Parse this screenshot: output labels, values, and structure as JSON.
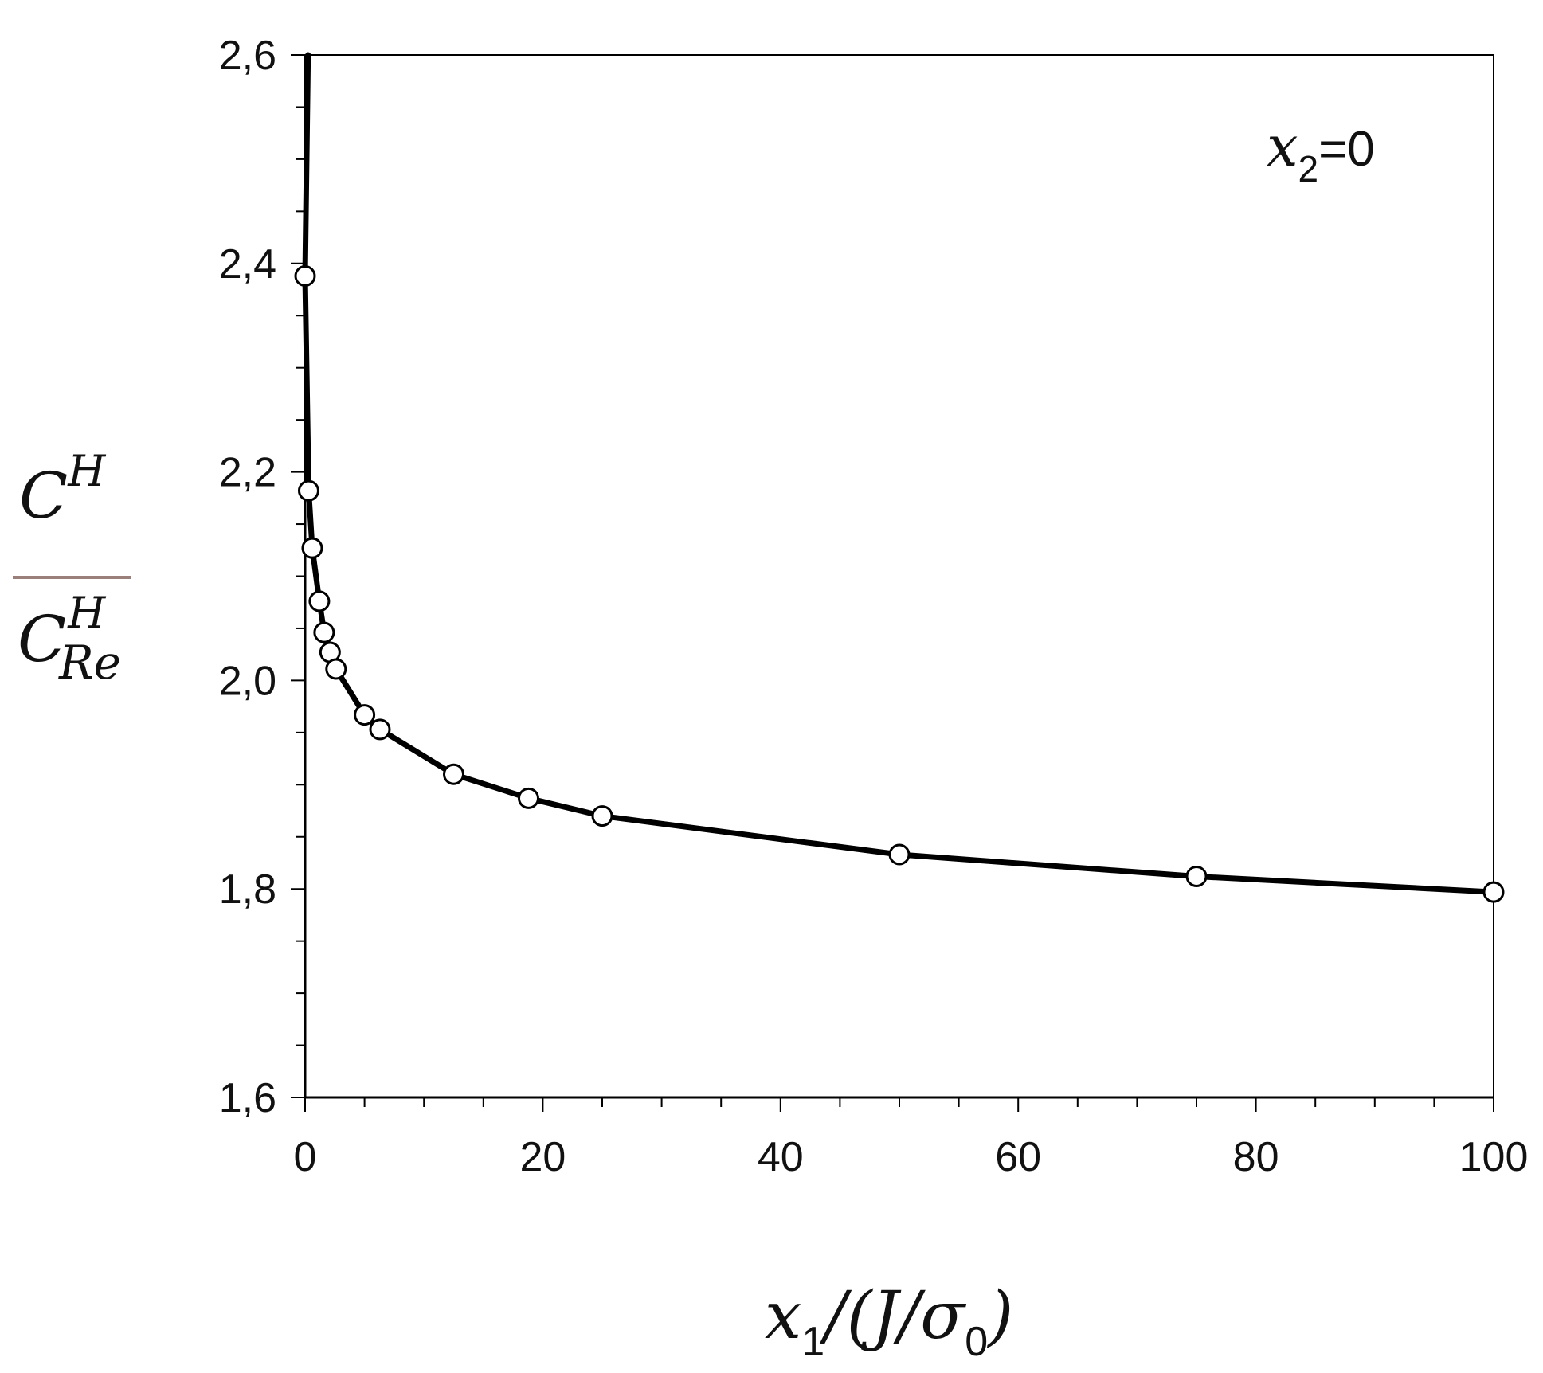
{
  "chart_data": {
    "type": "line",
    "annotation": {
      "var": "x",
      "sub": "2",
      "rest": "=0"
    },
    "xlabel": {
      "var": "x",
      "sub": "1",
      "rest": "/(J/σ",
      "sub2": "0",
      "close": ")"
    },
    "ylabel": {
      "num": "C",
      "num_sup": "H",
      "den": "C",
      "den_sup": "H",
      "den_sub": "Re"
    },
    "xlim": [
      0,
      100
    ],
    "ylim": [
      1.6,
      2.6
    ],
    "xticks": [
      0,
      20,
      40,
      60,
      80,
      100
    ],
    "xtick_labels": [
      "0",
      "20",
      "40",
      "60",
      "80",
      "100"
    ],
    "yticks": [
      1.6,
      1.8,
      2.0,
      2.2,
      2.4,
      2.6
    ],
    "ytick_labels": [
      "1,6",
      "1,8",
      "2,0",
      "2,2",
      "2,4",
      "2,6"
    ],
    "x_minor_step": 5,
    "y_minor_step": 0.05,
    "grid": false,
    "series": [
      {
        "marker": "open-circle",
        "line_color": "#000000",
        "x": [
          0,
          0.3,
          0.6,
          1.2,
          1.6,
          2.1,
          2.6,
          5,
          6.3,
          12.5,
          18.8,
          25,
          50,
          75,
          100
        ],
        "y": [
          2.388,
          2.182,
          2.127,
          2.076,
          2.046,
          2.027,
          2.011,
          1.967,
          1.953,
          1.91,
          1.887,
          1.87,
          1.833,
          1.812,
          1.797
        ]
      }
    ],
    "curve_start": {
      "x": 0.25,
      "y": 2.6
    }
  }
}
